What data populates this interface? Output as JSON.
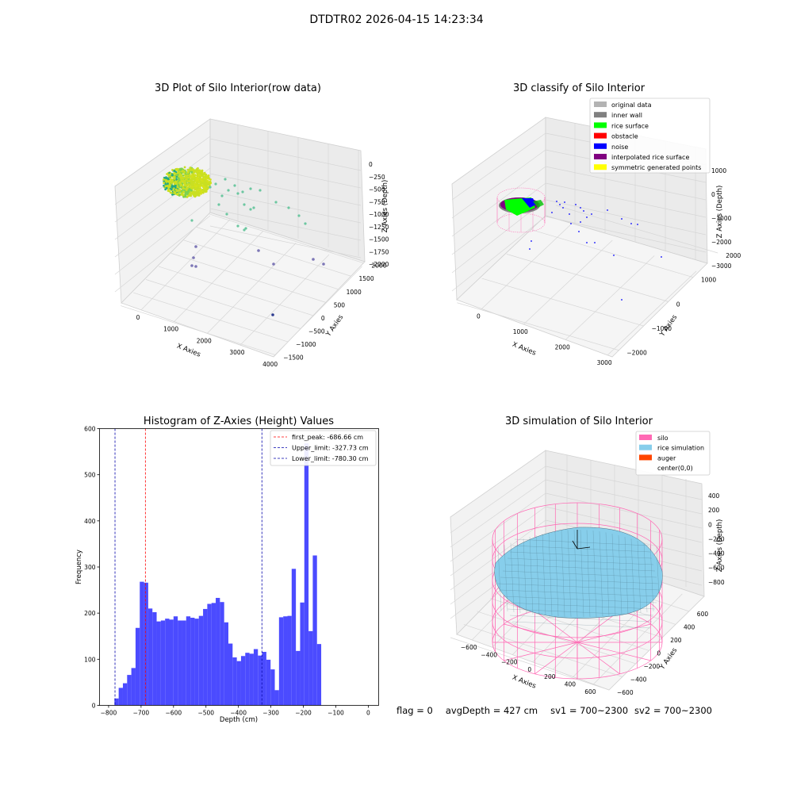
{
  "figure": {
    "title": "DTDTR02 2026-04-15 14:23:34"
  },
  "status": {
    "flag": "flag = 0",
    "avg_depth": "avgDepth = 427 cm",
    "sv1": "sv1 = 700~2300",
    "sv2": "sv2 = 700~2300"
  },
  "colors": {
    "hist_bar": "#4b4bff",
    "first_peak": "#ff0000",
    "limit": "#0000aa",
    "original": "#b3b3b3",
    "inner_wall": "#808080",
    "rice_surface": "#00ff00",
    "obstacle": "#ff0000",
    "noise": "#0000ff",
    "interp": "#800080",
    "sym": "#ffff00",
    "silo": "#ff69b4",
    "rice_sim": "#87ceeb",
    "auger": "#ff4500"
  },
  "chart_data": [
    {
      "type": "scatter",
      "title": "3D Plot of Silo Interior(row data)",
      "xlabel": "X Axies",
      "ylabel": "Y Axies",
      "zlabel": "Z Axies (Depth)",
      "xticks": [
        "0",
        "1000",
        "2000",
        "3000",
        "4000"
      ],
      "yticks": [
        "−1500",
        "−1000",
        "−500",
        "0",
        "500",
        "1000",
        "1500",
        "2000"
      ],
      "zticks": [
        "0",
        "−250",
        "−500",
        "−750",
        "−1000",
        "−1250",
        "−1500",
        "−1750",
        "−2000"
      ],
      "xlim": [
        -500,
        4000
      ],
      "ylim": [
        -1500,
        2000
      ],
      "zlim": [
        -2100,
        100
      ]
    },
    {
      "type": "scatter",
      "title": "3D classify of Silo Interior",
      "xlabel": "X Axies",
      "ylabel": "Y Axies",
      "zlabel": "Z Axies (Depth)",
      "xticks": [
        "0",
        "1000",
        "2000",
        "3000"
      ],
      "yticks": [
        "−2000",
        "−1000",
        "0",
        "1000",
        "2000"
      ],
      "zticks": [
        "1000",
        "0",
        "−1000",
        "−2000",
        "−3000"
      ],
      "legend": [
        "original data",
        "inner wall",
        "rice surface",
        "obstacle",
        "noise",
        "interpolated rice surface",
        "symmetric generated points"
      ],
      "legend_loc": "top-right"
    },
    {
      "type": "bar",
      "title": "Histogram of Z-Axies (Height) Values",
      "xlabel": "Depth (cm)",
      "ylabel": "Frequency",
      "xlim": [
        -828,
        32
      ],
      "ylim": [
        0,
        600
      ],
      "xticks": [
        -800,
        -700,
        -600,
        -500,
        -400,
        -300,
        -200,
        -100,
        0
      ],
      "yticks": [
        0,
        100,
        200,
        300,
        400,
        500,
        600
      ],
      "bin_start": -782,
      "bin_width": 13,
      "values": [
        15,
        38,
        48,
        66,
        81,
        168,
        268,
        266,
        210,
        202,
        182,
        184,
        188,
        186,
        193,
        184,
        184,
        193,
        190,
        188,
        194,
        209,
        220,
        222,
        233,
        224,
        180,
        134,
        104,
        96,
        107,
        114,
        112,
        122,
        108,
        116,
        99,
        78,
        33,
        191,
        193,
        194,
        296,
        118,
        223,
        568,
        161,
        325,
        133
      ],
      "lines": [
        {
          "label": "first_peak: -686.66 cm",
          "x": -686.66,
          "style": "red"
        },
        {
          "label": "Upper_limit: -327.73 cm",
          "x": -327.73,
          "style": "blue"
        },
        {
          "label": "Lower_limit: -780.30 cm",
          "x": -780.3,
          "style": "blue"
        }
      ],
      "legend_loc": "top-right"
    },
    {
      "type": "surface",
      "title": "3D simulation of Silo Interior",
      "xlabel": "X Axies",
      "ylabel": "Y Axies",
      "zlabel": "Z Axies (Depth)",
      "xticks": [
        "−600",
        "−400",
        "−200",
        "0",
        "200",
        "400",
        "600"
      ],
      "yticks": [
        "−600",
        "−400",
        "−200",
        "0",
        "200",
        "400",
        "600"
      ],
      "zticks": [
        "400",
        "200",
        "0",
        "−200",
        "−400",
        "−600",
        "−800"
      ],
      "legend": [
        "silo",
        "rice simulation",
        "auger",
        "center(0,0)"
      ],
      "legend_loc": "top-right"
    }
  ]
}
